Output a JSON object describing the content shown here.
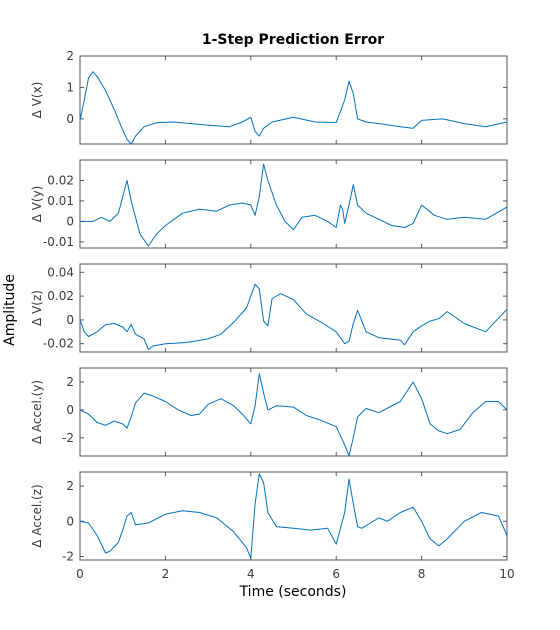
{
  "figure": {
    "title": "1-Step Prediction Error",
    "xlabel": "Time (seconds)",
    "ylabel": "Amplitude",
    "line_color": "#0072bd"
  },
  "chart_data": [
    {
      "type": "line",
      "ylabel": "Δ V(x)",
      "xlim": [
        0,
        10
      ],
      "ylim": [
        -0.8,
        2
      ],
      "yticks": [
        0,
        1,
        2
      ],
      "ytick_labels": [
        "0",
        "1",
        "2"
      ],
      "xtick_labels_shown": false,
      "grid": false,
      "x": [
        0,
        0.1,
        0.2,
        0.3,
        0.4,
        0.6,
        0.8,
        1.0,
        1.1,
        1.2,
        1.3,
        1.5,
        1.8,
        2.2,
        2.6,
        3.0,
        3.5,
        3.8,
        4.0,
        4.1,
        4.2,
        4.3,
        4.5,
        5.0,
        5.5,
        6.0,
        6.2,
        6.3,
        6.4,
        6.5,
        6.7,
        7.0,
        7.5,
        7.8,
        8.0,
        8.5,
        9.0,
        9.5,
        10.0
      ],
      "values": [
        -0.05,
        0.6,
        1.3,
        1.5,
        1.35,
        0.9,
        0.3,
        -0.35,
        -0.65,
        -0.8,
        -0.55,
        -0.25,
        -0.12,
        -0.1,
        -0.15,
        -0.2,
        -0.25,
        -0.1,
        0.05,
        -0.4,
        -0.55,
        -0.3,
        -0.1,
        0.05,
        -0.1,
        -0.12,
        0.6,
        1.2,
        0.8,
        0.0,
        -0.1,
        -0.15,
        -0.25,
        -0.3,
        -0.05,
        0.0,
        -0.15,
        -0.25,
        -0.1
      ]
    },
    {
      "type": "line",
      "ylabel": "Δ V(y)",
      "xlim": [
        0,
        10
      ],
      "ylim": [
        -0.013,
        0.03
      ],
      "yticks": [
        -0.01,
        0,
        0.01,
        0.02
      ],
      "ytick_labels": [
        "-0.01",
        "0",
        "0.01",
        "0.02"
      ],
      "xtick_labels_shown": false,
      "grid": false,
      "x": [
        0,
        0.3,
        0.5,
        0.7,
        0.9,
        1.0,
        1.1,
        1.2,
        1.4,
        1.6,
        1.8,
        2.0,
        2.4,
        2.8,
        3.2,
        3.5,
        3.8,
        4.0,
        4.1,
        4.2,
        4.3,
        4.4,
        4.6,
        4.8,
        5.0,
        5.2,
        5.5,
        5.8,
        6.0,
        6.1,
        6.15,
        6.2,
        6.3,
        6.4,
        6.5,
        6.7,
        7.0,
        7.3,
        7.6,
        7.8,
        8.0,
        8.3,
        8.6,
        9.0,
        9.5,
        10.0
      ],
      "values": [
        0.0,
        0.0,
        0.002,
        0.0,
        0.004,
        0.012,
        0.02,
        0.01,
        -0.006,
        -0.012,
        -0.006,
        -0.002,
        0.004,
        0.006,
        0.005,
        0.008,
        0.009,
        0.008,
        0.003,
        0.012,
        0.028,
        0.02,
        0.008,
        0.0,
        -0.004,
        0.002,
        0.003,
        0.0,
        -0.003,
        0.008,
        0.006,
        -0.001,
        0.008,
        0.018,
        0.008,
        0.004,
        0.001,
        -0.002,
        -0.003,
        -0.001,
        0.008,
        0.003,
        0.001,
        0.002,
        0.001,
        0.007
      ]
    },
    {
      "type": "line",
      "ylabel": "Δ V(z)",
      "xlim": [
        0,
        10
      ],
      "ylim": [
        -0.027,
        0.047
      ],
      "yticks": [
        -0.02,
        0,
        0.02,
        0.04
      ],
      "ytick_labels": [
        "-0.02",
        "0",
        "0.02",
        "0.04"
      ],
      "xtick_labels_shown": false,
      "grid": false,
      "x": [
        0,
        0.1,
        0.2,
        0.4,
        0.6,
        0.8,
        1.0,
        1.1,
        1.2,
        1.3,
        1.5,
        1.6,
        1.7,
        2.0,
        2.5,
        3.0,
        3.3,
        3.6,
        3.9,
        4.0,
        4.1,
        4.2,
        4.3,
        4.4,
        4.5,
        4.7,
        5.0,
        5.3,
        5.7,
        6.0,
        6.2,
        6.3,
        6.4,
        6.5,
        6.7,
        7.0,
        7.5,
        7.6,
        7.8,
        8.0,
        8.2,
        8.4,
        8.6,
        9.0,
        9.5,
        10.0
      ],
      "values": [
        0.0,
        -0.01,
        -0.014,
        -0.01,
        -0.004,
        -0.003,
        -0.006,
        -0.01,
        -0.004,
        -0.012,
        -0.016,
        -0.025,
        -0.022,
        -0.02,
        -0.019,
        -0.016,
        -0.012,
        -0.002,
        0.01,
        0.02,
        0.03,
        0.026,
        -0.001,
        -0.005,
        0.018,
        0.022,
        0.017,
        0.005,
        -0.003,
        -0.01,
        -0.02,
        -0.018,
        -0.003,
        0.008,
        -0.01,
        -0.015,
        -0.017,
        -0.021,
        -0.01,
        -0.005,
        -0.001,
        0.001,
        0.007,
        -0.003,
        -0.01,
        0.009
      ]
    },
    {
      "type": "line",
      "ylabel": "Δ Accel.(y)",
      "xlim": [
        0,
        10
      ],
      "ylim": [
        -3.3,
        3
      ],
      "yticks": [
        -2,
        0,
        2
      ],
      "ytick_labels": [
        "-2",
        "0",
        "2"
      ],
      "xtick_labels_shown": false,
      "grid": false,
      "x": [
        0,
        0.2,
        0.4,
        0.6,
        0.8,
        1.0,
        1.1,
        1.2,
        1.3,
        1.5,
        1.7,
        2.0,
        2.3,
        2.6,
        2.8,
        3.0,
        3.3,
        3.6,
        3.8,
        4.0,
        4.1,
        4.2,
        4.3,
        4.4,
        4.6,
        5.0,
        5.3,
        5.6,
        6.0,
        6.2,
        6.3,
        6.4,
        6.5,
        6.7,
        7.0,
        7.5,
        7.8,
        8.0,
        8.2,
        8.4,
        8.6,
        8.9,
        9.2,
        9.5,
        9.8,
        10.0
      ],
      "values": [
        0.0,
        -0.3,
        -0.9,
        -1.1,
        -0.8,
        -1.0,
        -1.3,
        -0.5,
        0.5,
        1.2,
        1.0,
        0.6,
        0.0,
        -0.4,
        -0.3,
        0.4,
        0.8,
        0.3,
        -0.3,
        -1.0,
        0.3,
        2.6,
        1.2,
        0.0,
        0.3,
        0.2,
        -0.4,
        -0.7,
        -1.2,
        -2.5,
        -3.3,
        -2.0,
        -0.5,
        0.1,
        -0.2,
        0.6,
        2.0,
        0.8,
        -1.0,
        -1.5,
        -1.7,
        -1.4,
        -0.2,
        0.6,
        0.6,
        0.0
      ]
    },
    {
      "type": "line",
      "ylabel": "Δ Accel.(z)",
      "xlim": [
        0,
        10
      ],
      "ylim": [
        -2.2,
        2.8
      ],
      "yticks": [
        -2,
        0,
        2
      ],
      "ytick_labels": [
        "-2",
        "0",
        "2"
      ],
      "xtick_labels": [
        "0",
        "2",
        "4",
        "6",
        "8",
        "10"
      ],
      "xticks": [
        0,
        2,
        4,
        6,
        8,
        10
      ],
      "xtick_labels_shown": true,
      "grid": false,
      "x": [
        0,
        0.2,
        0.4,
        0.6,
        0.7,
        0.9,
        1.0,
        1.1,
        1.2,
        1.3,
        1.6,
        2.0,
        2.4,
        2.8,
        3.2,
        3.6,
        3.9,
        4.0,
        4.1,
        4.2,
        4.3,
        4.4,
        4.6,
        5.0,
        5.4,
        5.8,
        6.0,
        6.2,
        6.3,
        6.4,
        6.5,
        6.6,
        6.8,
        7.0,
        7.2,
        7.5,
        7.8,
        8.0,
        8.2,
        8.4,
        8.6,
        9.0,
        9.4,
        9.8,
        10.0
      ],
      "values": [
        0.0,
        -0.1,
        -0.8,
        -1.8,
        -1.7,
        -1.2,
        -0.5,
        0.3,
        0.5,
        -0.2,
        -0.1,
        0.4,
        0.6,
        0.5,
        0.2,
        -0.6,
        -1.5,
        -2.1,
        1.0,
        2.7,
        2.2,
        0.5,
        -0.3,
        -0.4,
        -0.5,
        -0.4,
        -1.3,
        0.5,
        2.4,
        1.0,
        -0.3,
        -0.4,
        -0.1,
        0.2,
        0.0,
        0.5,
        0.8,
        0.0,
        -1.0,
        -1.4,
        -1.0,
        0.0,
        0.5,
        0.3,
        -0.8
      ]
    }
  ]
}
